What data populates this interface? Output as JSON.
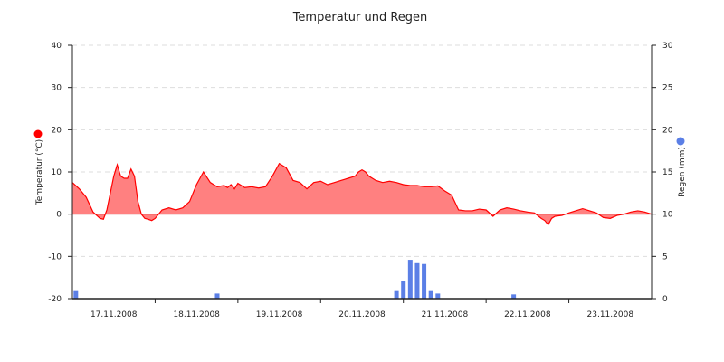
{
  "chart_data": {
    "type": "line",
    "title": "Temperatur und Regen",
    "x_tick_labels": [
      "17.11.2008",
      "18.11.2008",
      "19.11.2008",
      "20.11.2008",
      "21.11.2008",
      "22.11.2008",
      "23.11.2008"
    ],
    "x_range_hours": [
      -12,
      156
    ],
    "y_left": {
      "label": "Temperatur (°C)",
      "range": [
        -20,
        40
      ],
      "ticks": [
        -20,
        -10,
        0,
        10,
        20,
        30,
        40
      ],
      "color": "#ff0000"
    },
    "y_right": {
      "label": "Regen (mm)",
      "range": [
        0,
        30
      ],
      "ticks": [
        0,
        5,
        10,
        15,
        20,
        25,
        30
      ],
      "color": "#5b7fe6"
    },
    "grid": "horizontal dashed",
    "series": [
      {
        "name": "Temperatur (°C)",
        "kind": "area",
        "color": "#ff0000",
        "fill": "#ff8080",
        "x_hours": [
          -12,
          -10,
          -8,
          -6,
          -4,
          -3,
          -2,
          -1,
          0,
          1,
          2,
          3,
          4,
          5,
          6,
          7,
          8,
          9,
          10,
          11,
          12,
          14,
          16,
          18,
          20,
          22,
          24,
          26,
          28,
          30,
          32,
          33,
          34,
          35,
          36,
          38,
          40,
          42,
          44,
          46,
          48,
          50,
          52,
          54,
          56,
          58,
          60,
          62,
          64,
          66,
          68,
          70,
          71,
          72,
          73,
          74,
          76,
          78,
          80,
          82,
          84,
          86,
          88,
          90,
          92,
          94,
          96,
          98,
          100,
          102,
          104,
          106,
          108,
          110,
          112,
          114,
          116,
          118,
          120,
          122,
          124,
          125,
          126,
          127,
          128,
          130,
          132,
          134,
          136,
          138,
          140,
          142,
          144,
          146,
          148,
          150,
          152,
          154,
          156
        ],
        "y": [
          7.5,
          6,
          4,
          0.5,
          -1,
          -1.2,
          1,
          5,
          9,
          11.7,
          9,
          8.5,
          8.5,
          10.7,
          9,
          3,
          0,
          -1,
          -1.2,
          -1.5,
          -1,
          1,
          1.5,
          1,
          1.5,
          3,
          7,
          10,
          7.5,
          6.5,
          6.8,
          6.3,
          7,
          6,
          7.3,
          6.3,
          6.5,
          6.2,
          6.5,
          9,
          12,
          11,
          8,
          7.5,
          6,
          7.5,
          7.8,
          7,
          7.5,
          8,
          8.5,
          9,
          10,
          10.5,
          10,
          9,
          8,
          7.5,
          7.8,
          7.5,
          7,
          6.8,
          6.8,
          6.5,
          6.5,
          6.7,
          5.5,
          4.5,
          1,
          0.8,
          0.8,
          1.2,
          1,
          -0.5,
          1,
          1.5,
          1.2,
          0.8,
          0.5,
          0.3,
          -1,
          -1.5,
          -2.5,
          -1,
          -0.5,
          -0.3,
          0.3,
          0.8,
          1.3,
          0.8,
          0.3,
          -0.8,
          -1,
          -0.3,
          0,
          0.5,
          0.8,
          0.5,
          0
        ]
      },
      {
        "name": "Regen (mm)",
        "kind": "bar",
        "color": "#5b7fe6",
        "x_hours": [
          -11,
          30,
          82,
          84,
          86,
          88,
          90,
          92,
          94,
          96,
          116
        ],
        "values": [
          1,
          0.6,
          1,
          2.1,
          4.6,
          4.2,
          4.1,
          1,
          0.6,
          0,
          0.5
        ]
      }
    ]
  }
}
